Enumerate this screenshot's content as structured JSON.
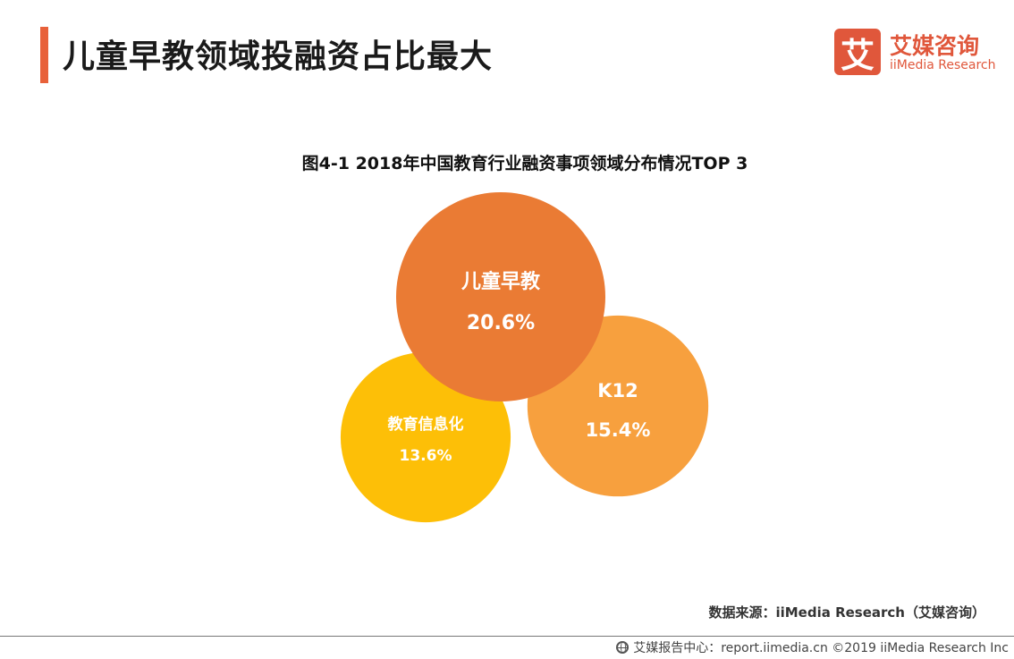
{
  "header": {
    "title": "儿童早教领域投融资占比最大",
    "accent_color": "#e8613a"
  },
  "logo": {
    "mark": "艾",
    "name_cn": "艾媒咨询",
    "name_en": "iiMedia Research",
    "color": "#e0573b"
  },
  "chart_data": {
    "type": "bubble",
    "title": "图4-1 2018年中国教育行业融资事项领域分布情况TOP 3",
    "series": [
      {
        "name": "儿童早教",
        "value": 20.6,
        "label": "20.6%",
        "color": "#ea7b34"
      },
      {
        "name": "K12",
        "value": 15.4,
        "label": "15.4%",
        "color": "#f7a03e"
      },
      {
        "name": "教育信息化",
        "value": 13.6,
        "label": "13.6%",
        "color": "#fdbf07"
      }
    ]
  },
  "source": {
    "text": "数据来源：iiMedia Research（艾媒咨询）"
  },
  "footer": {
    "text": "艾媒报告中心：report.iimedia.cn  ©2019  iiMedia Research  Inc"
  }
}
